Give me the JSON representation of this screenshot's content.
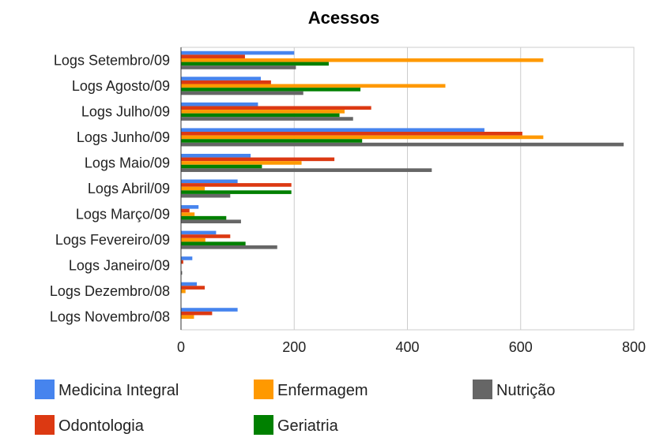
{
  "chart_data": {
    "type": "bar",
    "orientation": "horizontal",
    "title": "Acessos",
    "xlabel": "",
    "ylabel": "",
    "xlim": [
      0,
      800
    ],
    "x_ticks": [
      "0",
      "200",
      "400",
      "600",
      "800"
    ],
    "grid": true,
    "legend_position": "bottom",
    "categories": [
      "Logs Setembro/09",
      "Logs Agosto/09",
      "Logs Julho/09",
      "Logs Junho/09",
      "Logs Maio/09",
      "Logs Abril/09",
      "Logs Março/09",
      "Logs Fevereiro/09",
      "Logs Janeiro/09",
      "Logs Dezembro/08",
      "Logs Novembro/08"
    ],
    "series": [
      {
        "name": "Medicina Integral",
        "color": "#4684ee",
        "values": [
          200,
          141,
          136,
          536,
          123,
          100,
          31,
          62,
          20,
          28,
          100
        ]
      },
      {
        "name": "Odontologia",
        "color": "#dc3912",
        "values": [
          113,
          159,
          336,
          603,
          271,
          195,
          15,
          87,
          4,
          42,
          55
        ]
      },
      {
        "name": "Enfermagem",
        "color": "#ff9900",
        "values": [
          640,
          467,
          289,
          640,
          213,
          42,
          24,
          43,
          0,
          8,
          23
        ]
      },
      {
        "name": "Geriatria",
        "color": "#008000",
        "values": [
          261,
          317,
          280,
          320,
          143,
          195,
          80,
          114,
          0,
          0,
          0
        ]
      },
      {
        "name": "Nutrição",
        "color": "#666666",
        "values": [
          203,
          216,
          304,
          782,
          443,
          87,
          106,
          170,
          2,
          0,
          0
        ]
      }
    ]
  }
}
